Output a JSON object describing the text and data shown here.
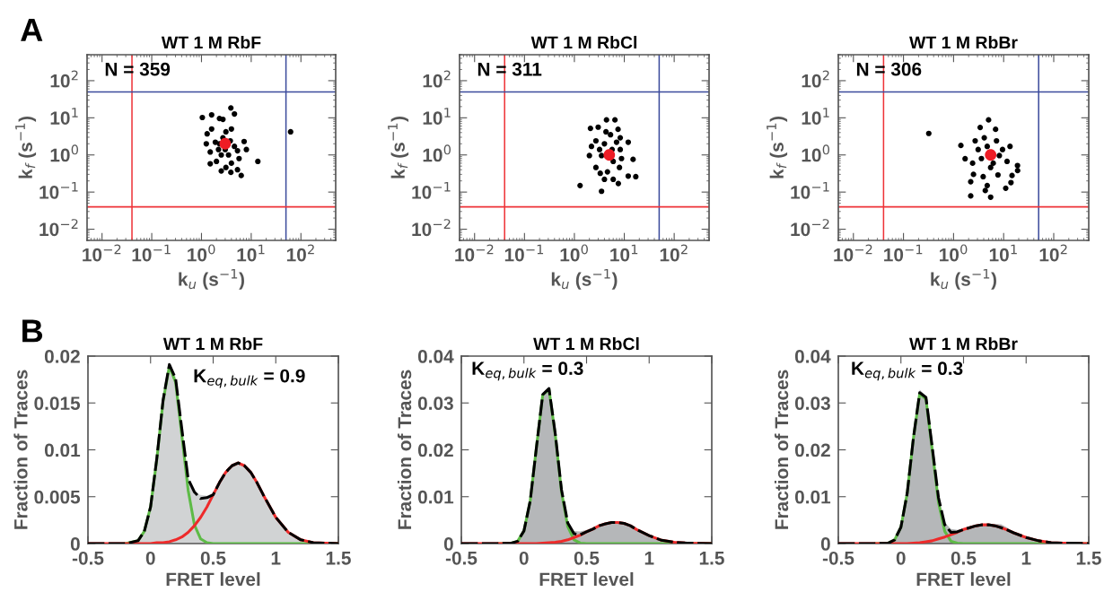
{
  "chart_data": [
    {
      "type": "scatter",
      "title": "WT 1 M RbF",
      "xlabel": "k$_{u}$ (s$^{−1}$)",
      "ylabel": "k$_{f}$ (s$^{−1}$)",
      "log": "xy",
      "marker": "circle",
      "annotations": [
        "A",
        "N = 359"
      ],
      "xlim": [
        0.005,
        500
      ],
      "ylim": [
        0.005,
        500
      ],
      "xticks": [
        {
          "value": 0.01,
          "label": "10$^{−2}$"
        },
        {
          "value": 0.1,
          "label": "10$^{−1}$"
        },
        {
          "value": 1,
          "label": "10$^{0}$"
        },
        {
          "value": 10,
          "label": "10$^{1}$"
        },
        {
          "value": 100,
          "label": "10$^{2}$"
        }
      ],
      "yticks": [
        {
          "value": 0.01,
          "label": "10$^{−2}$"
        },
        {
          "value": 0.1,
          "label": "10$^{−1}$"
        },
        {
          "value": 1,
          "label": "10$^{0}$"
        },
        {
          "value": 10,
          "label": "10$^{1}$"
        },
        {
          "value": 100,
          "label": "10$^{2}$"
        }
      ],
      "ref_lines": [
        {
          "axis": "x",
          "value": 0.04,
          "color": "#ee3338"
        },
        {
          "axis": "x",
          "value": 50,
          "color": "#3c4b9c"
        },
        {
          "axis": "y",
          "value": 0.04,
          "color": "#ee3338"
        },
        {
          "axis": "y",
          "value": 50,
          "color": "#3c4b9c"
        }
      ],
      "series": [
        {
          "color": "#000000",
          "x": [
            1.04,
            1.6,
            3.9,
            4.6,
            2.3,
            2.7,
            62,
            13.6,
            1.5,
            2,
            2.5,
            3.1,
            3.9,
            5.3,
            6.3,
            1.25,
            1.3,
            8,
            7.2,
            1.6,
            4,
            3.5,
            2.2,
            5.7,
            2.7,
            1.9,
            4.6,
            3.1,
            2.5,
            5.3,
            1.5,
            4,
            3,
            2.3,
            3.8
          ],
          "values": [
            10.2,
            12,
            18.4,
            12.7,
            9.6,
            9.1,
            4.2,
            0.67,
            0.58,
            0.67,
            0.37,
            0.46,
            0.34,
            0.4,
            0.28,
            2,
            3.7,
            1.4,
            2.3,
            5,
            5,
            1,
            1.4,
            0.8,
            2.9,
            2.2,
            1.7,
            4.2,
            1,
            1.3,
            1.2,
            0.6,
            1.4,
            2,
            2.4
          ]
        },
        {
          "color": "#ee1c25",
          "x": [
            3
          ],
          "values": [
            2
          ]
        }
      ]
    },
    {
      "type": "scatter",
      "title": "WT 1 M RbCl",
      "xlabel": "k$_{u}$ (s$^{−1}$)",
      "ylabel": "k$_{f}$ (s$^{−1}$)",
      "log": "xy",
      "marker": "circle",
      "annotations": [
        "N = 311"
      ],
      "xlim": [
        0.005,
        500
      ],
      "ylim": [
        0.005,
        500
      ],
      "xticks": [
        {
          "value": 0.01,
          "label": "10$^{−2}$"
        },
        {
          "value": 0.1,
          "label": "10$^{−1}$"
        },
        {
          "value": 1,
          "label": "10$^{0}$"
        },
        {
          "value": 10,
          "label": "10$^{1}$"
        },
        {
          "value": 100,
          "label": "10$^{2}$"
        }
      ],
      "yticks": [
        {
          "value": 0.01,
          "label": "10$^{−2}$"
        },
        {
          "value": 0.1,
          "label": "10$^{−1}$"
        },
        {
          "value": 1,
          "label": "10$^{0}$"
        },
        {
          "value": 10,
          "label": "10$^{1}$"
        },
        {
          "value": 100,
          "label": "10$^{2}$"
        }
      ],
      "ref_lines": [
        {
          "axis": "x",
          "value": 0.04,
          "color": "#ee3338"
        },
        {
          "axis": "x",
          "value": 50,
          "color": "#3c4b9c"
        },
        {
          "axis": "y",
          "value": 0.04,
          "color": "#ee3338"
        },
        {
          "axis": "y",
          "value": 50,
          "color": "#3c4b9c"
        }
      ],
      "series": [
        {
          "color": "#000000",
          "x": [
            1.3,
            3.5,
            4.4,
            6.5,
            2.1,
            3,
            7.5,
            12,
            17,
            15,
            12,
            7.6,
            4,
            6,
            2,
            2.7,
            2.7,
            5.3,
            4,
            8.3,
            6,
            3.5,
            8,
            4.6,
            7,
            3.2,
            8.8,
            4.3,
            2.2,
            5.7,
            3.3,
            8.3
          ],
          "values": [
            0.15,
            0.105,
            8.8,
            8.8,
            5.2,
            5.6,
            4.9,
            2.2,
            0.26,
            0.76,
            0.27,
            0.17,
            0.22,
            0.22,
            0.96,
            2.4,
            0.46,
            3.5,
            2,
            1.4,
            0.67,
            0.96,
            0.46,
            0.35,
            2.2,
            1.4,
            0.8,
            4.2,
            1.7,
            1.4,
            0.32,
            2.9
          ]
        },
        {
          "color": "#ee1c25",
          "x": [
            5
          ],
          "values": [
            1
          ]
        }
      ]
    },
    {
      "type": "scatter",
      "title": "WT 1 M RbBr",
      "xlabel": "k$_{u}$ (s$^{−1}$)",
      "ylabel": "k$_{f}$ (s$^{−1}$)",
      "log": "xy",
      "marker": "circle",
      "annotations": [
        "N = 306"
      ],
      "xlim": [
        0.005,
        500
      ],
      "ylim": [
        0.005,
        500
      ],
      "xticks": [
        {
          "value": 0.01,
          "label": "10$^{−2}$"
        },
        {
          "value": 0.1,
          "label": "10$^{−1}$"
        },
        {
          "value": 1,
          "label": "10$^{0}$"
        },
        {
          "value": 10,
          "label": "10$^{1}$"
        },
        {
          "value": 100,
          "label": "10$^{2}$"
        }
      ],
      "yticks": [
        {
          "value": 0.01,
          "label": "10$^{−2}$"
        },
        {
          "value": 0.1,
          "label": "10$^{−1}$"
        },
        {
          "value": 1,
          "label": "10$^{0}$"
        },
        {
          "value": 10,
          "label": "10$^{1}$"
        },
        {
          "value": 100,
          "label": "10$^{2}$"
        }
      ],
      "ref_lines": [
        {
          "axis": "x",
          "value": 0.04,
          "color": "#ee3338"
        },
        {
          "axis": "x",
          "value": 50,
          "color": "#3c4b9c"
        },
        {
          "axis": "y",
          "value": 0.04,
          "color": "#ee3338"
        },
        {
          "axis": "y",
          "value": 50,
          "color": "#3c4b9c"
        }
      ],
      "series": [
        {
          "color": "#000000",
          "x": [
            0.32,
            1.4,
            1.7,
            5,
            3.4,
            6.9,
            13.4,
            18.9,
            19,
            14.7,
            14,
            11,
            2.2,
            2.2,
            5.5,
            4.3,
            4.7,
            2.5,
            3.9,
            7.7,
            2.4,
            3.1,
            4.1,
            8.2,
            9.5,
            5.5,
            3.6,
            7.2,
            11.7,
            2.7,
            6.2,
            4.7
          ],
          "values": [
            3.8,
            1.8,
            0.79,
            8.8,
            5.5,
            4.9,
            1.7,
            0.52,
            0.38,
            0.28,
            0.18,
            0.127,
            0.19,
            0.079,
            0.073,
            0.11,
            0.15,
            0.3,
            0.26,
            0.29,
            0.6,
            1.4,
            2.9,
            0.96,
            1.4,
            0.46,
            0.8,
            2.4,
            0.67,
            2.4,
            0.6,
            1.7
          ]
        },
        {
          "color": "#ee1c25",
          "x": [
            5.5
          ],
          "values": [
            1
          ]
        }
      ]
    },
    {
      "type": "line",
      "title": "WT 1 M RbF",
      "xlabel": "FRET level",
      "ylabel": "Fraction of Traces",
      "annotations": [
        "B",
        "K$_{eq,bulk}$ = 0.9"
      ],
      "xlim": [
        -0.5,
        1.5
      ],
      "ylim": [
        0,
        0.02
      ],
      "xticks": [
        -0.5,
        0,
        0.5,
        1,
        1.5
      ],
      "yticks": [
        0,
        0.005,
        0.01,
        0.015,
        0.02
      ],
      "x": [
        -0.5,
        -0.3,
        -0.2,
        -0.1,
        -0.05,
        0,
        0.05,
        0.1,
        0.15,
        0.2,
        0.25,
        0.3,
        0.35,
        0.4,
        0.45,
        0.5,
        0.55,
        0.6,
        0.65,
        0.7,
        0.75,
        0.8,
        0.85,
        0.9,
        1.0,
        1.1,
        1.2,
        1.3,
        1.5
      ],
      "series": [
        {
          "type": "area",
          "color": "#d1d3d4",
          "values": [
            0,
            0,
            0,
            0.0002,
            0.0012,
            0.0038,
            0.009,
            0.0155,
            0.019,
            0.0178,
            0.012,
            0.0071,
            0.0054,
            0.0052,
            0.0051,
            0.0054,
            0.0067,
            0.0078,
            0.0085,
            0.0088,
            0.0084,
            0.0075,
            0.0064,
            0.005,
            0.0027,
            0.0011,
            0.0003,
            0.0001,
            0
          ]
        },
        {
          "type": "line",
          "color": "#5dbb46",
          "line_style": "solid",
          "values": [
            null,
            null,
            0,
            0.0003,
            0.0013,
            0.0039,
            0.009,
            0.0152,
            0.0189,
            0.0172,
            0.0115,
            0.0057,
            0.002,
            0.0005,
            0.0001,
            0,
            0,
            0,
            0,
            0,
            0,
            0,
            0,
            0,
            0,
            0,
            0,
            0,
            0
          ]
        },
        {
          "type": "line",
          "color": "#ee2a2a",
          "line_style": "solid",
          "values": [
            0,
            0,
            0,
            0,
            0,
            0,
            0.0001,
            0.0001,
            0.0002,
            0.0004,
            0.0007,
            0.0012,
            0.0019,
            0.0028,
            0.0039,
            0.0052,
            0.0065,
            0.0076,
            0.0083,
            0.0086,
            0.0083,
            0.0076,
            0.0065,
            0.0052,
            0.0028,
            0.0012,
            0.0004,
            0.0001,
            0
          ]
        },
        {
          "type": "line",
          "color": "#000000",
          "line_style": "dashed",
          "values": [
            0,
            0,
            0,
            0.0003,
            0.0013,
            0.0039,
            0.0091,
            0.0153,
            0.0191,
            0.0176,
            0.0122,
            0.0069,
            0.0055,
            0.0048,
            0.0049,
            0.0052,
            0.0065,
            0.0076,
            0.0083,
            0.0086,
            0.0083,
            0.0076,
            0.0065,
            0.0052,
            0.0028,
            0.0012,
            0.0004,
            0.0001,
            0
          ]
        }
      ]
    },
    {
      "type": "line",
      "title": "WT 1 M RbCl",
      "xlabel": "FRET level",
      "ylabel": "Fraction of Traces",
      "annotations": [
        "K$_{eq,bulk}$ = 0.3"
      ],
      "xlim": [
        -0.5,
        1.5
      ],
      "ylim": [
        0,
        0.04
      ],
      "xticks": [
        -0.5,
        0,
        0.5,
        1,
        1.5
      ],
      "yticks": [
        0,
        0.01,
        0.02,
        0.03,
        0.04
      ],
      "x": [
        -0.5,
        -0.3,
        -0.2,
        -0.1,
        -0.05,
        0,
        0.05,
        0.1,
        0.15,
        0.2,
        0.25,
        0.3,
        0.35,
        0.4,
        0.45,
        0.5,
        0.55,
        0.6,
        0.65,
        0.7,
        0.75,
        0.8,
        0.85,
        0.9,
        1.0,
        1.1,
        1.2,
        1.3,
        1.5
      ],
      "series": [
        {
          "type": "area",
          "color": "#b5b7b9",
          "values": [
            0,
            0,
            0,
            0.0001,
            0.0004,
            0.0026,
            0.009,
            0.0208,
            0.0322,
            0.0334,
            0.0238,
            0.0118,
            0.0047,
            0.0027,
            0.0026,
            0.0029,
            0.0034,
            0.004,
            0.0044,
            0.0047,
            0.0048,
            0.0046,
            0.004,
            0.0031,
            0.0016,
            0.0006,
            0.0002,
            0.0001,
            0
          ]
        },
        {
          "type": "line",
          "color": "#5dbb46",
          "line_style": "solid",
          "values": [
            null,
            null,
            0,
            0.0001,
            0.0005,
            0.0027,
            0.0091,
            0.0206,
            0.0317,
            0.0329,
            0.0232,
            0.011,
            0.0036,
            0.0008,
            0.0001,
            0,
            0,
            0,
            0,
            0,
            0,
            0,
            0,
            0,
            0,
            0,
            0,
            0,
            0
          ]
        },
        {
          "type": "line",
          "color": "#ee2a2a",
          "line_style": "solid",
          "values": [
            0,
            0,
            0,
            0,
            0,
            0,
            0,
            0,
            0.0001,
            0.0002,
            0.0003,
            0.0005,
            0.0008,
            0.0013,
            0.0018,
            0.0025,
            0.0031,
            0.0038,
            0.0042,
            0.0045,
            0.0045,
            0.0043,
            0.0038,
            0.003,
            0.0017,
            0.0007,
            0.0003,
            0.0001,
            0
          ]
        },
        {
          "type": "line",
          "color": "#000000",
          "line_style": "dashed",
          "values": [
            0,
            0,
            0,
            0.0001,
            0.0005,
            0.0027,
            0.0091,
            0.0206,
            0.0318,
            0.0331,
            0.0235,
            0.0115,
            0.0044,
            0.0021,
            0.0019,
            0.0025,
            0.0031,
            0.0038,
            0.0042,
            0.0045,
            0.0045,
            0.0043,
            0.0038,
            0.003,
            0.0017,
            0.0007,
            0.0003,
            0.0001,
            0
          ]
        }
      ]
    },
    {
      "type": "line",
      "title": "WT 1 M RbBr",
      "xlabel": "FRET level",
      "ylabel": "Fraction of Traces",
      "annotations": [
        "K$_{eq,bulk}$ = 0.3"
      ],
      "xlim": [
        -0.5,
        1.5
      ],
      "ylim": [
        0,
        0.04
      ],
      "xticks": [
        -0.5,
        0,
        0.5,
        1,
        1.5
      ],
      "yticks": [
        0,
        0.01,
        0.02,
        0.03,
        0.04
      ],
      "x": [
        -0.5,
        -0.3,
        -0.2,
        -0.1,
        -0.05,
        0,
        0.05,
        0.1,
        0.15,
        0.2,
        0.25,
        0.3,
        0.35,
        0.4,
        0.45,
        0.5,
        0.55,
        0.6,
        0.65,
        0.7,
        0.75,
        0.8,
        0.85,
        0.9,
        1.0,
        1.1,
        1.2,
        1.3,
        1.5
      ],
      "series": [
        {
          "type": "area",
          "color": "#b5b7b9",
          "values": [
            0,
            0,
            0,
            0.0001,
            0.0007,
            0.0034,
            0.0105,
            0.0228,
            0.0328,
            0.0315,
            0.0209,
            0.01,
            0.0045,
            0.0031,
            0.0029,
            0.0032,
            0.0035,
            0.0039,
            0.0041,
            0.0042,
            0.0042,
            0.0041,
            0.0034,
            0.0024,
            0.0012,
            0.0005,
            0.0002,
            0.0001,
            0
          ]
        },
        {
          "type": "line",
          "color": "#5dbb46",
          "line_style": "solid",
          "values": [
            null,
            null,
            0,
            0.0001,
            0.0008,
            0.0035,
            0.0107,
            0.0225,
            0.032,
            0.0308,
            0.02,
            0.0088,
            0.0026,
            0.0005,
            0.0001,
            0,
            0,
            0,
            0,
            0,
            0,
            0,
            0,
            0,
            0,
            0,
            0,
            0,
            0
          ]
        },
        {
          "type": "line",
          "color": "#ee2a2a",
          "line_style": "solid",
          "values": [
            0,
            0,
            0,
            0,
            0,
            0,
            0,
            0.0001,
            0.0002,
            0.0004,
            0.0006,
            0.001,
            0.0014,
            0.0019,
            0.0024,
            0.003,
            0.0034,
            0.0038,
            0.004,
            0.004,
            0.0038,
            0.0034,
            0.0029,
            0.0023,
            0.0013,
            0.0006,
            0.0002,
            0.0001,
            0
          ]
        },
        {
          "type": "line",
          "color": "#000000",
          "line_style": "dashed",
          "values": [
            0,
            0,
            0,
            0.0001,
            0.0008,
            0.0035,
            0.0107,
            0.0226,
            0.0322,
            0.0312,
            0.0206,
            0.0098,
            0.004,
            0.0024,
            0.0025,
            0.003,
            0.0034,
            0.0038,
            0.004,
            0.004,
            0.0038,
            0.0034,
            0.0029,
            0.0023,
            0.0013,
            0.0006,
            0.0002,
            0.0001,
            0
          ]
        }
      ]
    }
  ]
}
